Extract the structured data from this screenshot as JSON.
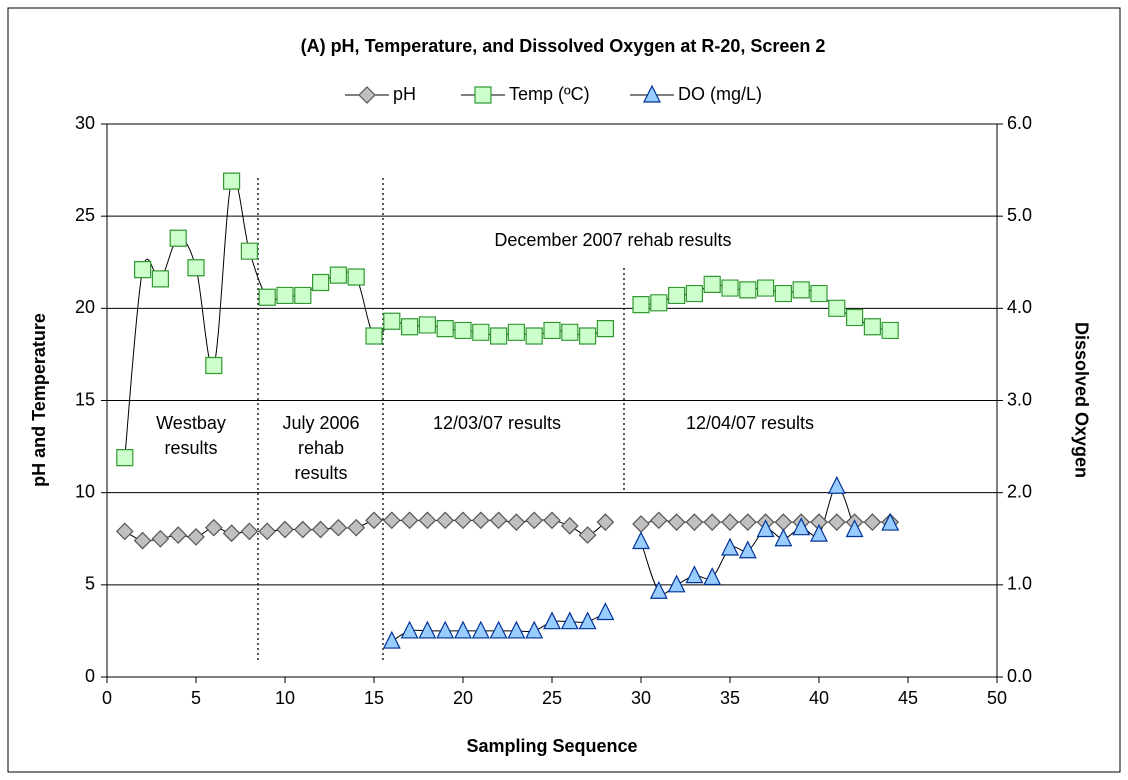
{
  "chart_data": {
    "type": "line",
    "title": "(A)    pH, Temperature, and Dissolved Oxygen at R-20, Screen 2",
    "x_label": "Sampling Sequence",
    "y_label": "pH and Temperature",
    "y2_label": "Dissolved Oxygen",
    "x": [
      1,
      2,
      3,
      4,
      5,
      6,
      7,
      8,
      9,
      10,
      11,
      12,
      13,
      14,
      15,
      16,
      17,
      18,
      19,
      20,
      21,
      22,
      23,
      24,
      25,
      26,
      27,
      28,
      29,
      30,
      31,
      32,
      33,
      34,
      35,
      36,
      37,
      38,
      39,
      40,
      41,
      42,
      43,
      44
    ],
    "series": [
      {
        "name": "pH",
        "color": "#c0c0c0",
        "marker": "diamond",
        "values": [
          7.9,
          7.4,
          7.5,
          7.7,
          7.6,
          8.1,
          7.8,
          7.9,
          7.9,
          8.0,
          8.0,
          8.0,
          8.1,
          8.1,
          8.5,
          8.5,
          8.5,
          8.5,
          8.5,
          8.5,
          8.5,
          8.5,
          8.4,
          8.5,
          8.5,
          8.2,
          7.7,
          8.4,
          null,
          8.3,
          8.5,
          8.4,
          8.4,
          8.4,
          8.4,
          8.4,
          8.4,
          8.4,
          8.4,
          8.4,
          8.4,
          8.4,
          8.4,
          8.4
        ]
      },
      {
        "name": "Temp (ºC)",
        "color": "#ccffcc",
        "marker": "square",
        "values": [
          11.9,
          22.1,
          21.6,
          23.8,
          22.2,
          16.9,
          26.9,
          23.1,
          20.6,
          20.7,
          20.7,
          21.4,
          21.8,
          21.7,
          18.5,
          19.3,
          19.0,
          19.1,
          18.9,
          18.8,
          18.7,
          18.5,
          18.7,
          18.5,
          18.8,
          18.7,
          18.5,
          18.9,
          null,
          20.2,
          20.3,
          20.7,
          20.8,
          21.3,
          21.1,
          21.0,
          21.1,
          20.8,
          21.0,
          20.8,
          20.0,
          19.5,
          19.0,
          18.8
        ]
      },
      {
        "name": "DO (mg/L)",
        "color": "#99ccff",
        "marker": "triangle",
        "axis": "y2",
        "values": [
          null,
          null,
          null,
          null,
          null,
          null,
          null,
          null,
          null,
          null,
          null,
          null,
          null,
          null,
          null,
          0.39,
          0.5,
          0.5,
          0.5,
          0.5,
          0.5,
          0.5,
          0.5,
          0.5,
          0.6,
          0.6,
          0.6,
          0.7,
          null,
          1.47,
          0.93,
          1.0,
          1.1,
          1.08,
          1.4,
          1.37,
          1.6,
          1.5,
          1.62,
          1.55,
          2.07,
          1.6,
          null,
          1.67
        ]
      }
    ],
    "xlim": [
      0,
      50
    ],
    "xticks": [
      0,
      5,
      10,
      15,
      20,
      25,
      30,
      35,
      40,
      45,
      50
    ],
    "ylim": [
      0,
      30
    ],
    "yticks": [
      0,
      5,
      10,
      15,
      20,
      25,
      30
    ],
    "y2lim": [
      0,
      6
    ],
    "y2ticks": [
      {
        "value": 0,
        "label": "0.0"
      },
      {
        "value": 1,
        "label": "1.0"
      },
      {
        "value": 2,
        "label": "2.0"
      },
      {
        "value": 3,
        "label": "3.0"
      },
      {
        "value": 4,
        "label": "4.0"
      },
      {
        "value": 5,
        "label": "5.0"
      },
      {
        "value": 6,
        "label": "6.0"
      }
    ],
    "grid": true,
    "legend": "top",
    "annotations": [
      [
        "Westbay",
        "results"
      ],
      [
        "July 2006",
        "rehab",
        "results"
      ],
      [
        "12/03/07 results"
      ],
      [
        "12/04/07 results"
      ],
      [
        "December 2007 rehab results"
      ]
    ]
  }
}
